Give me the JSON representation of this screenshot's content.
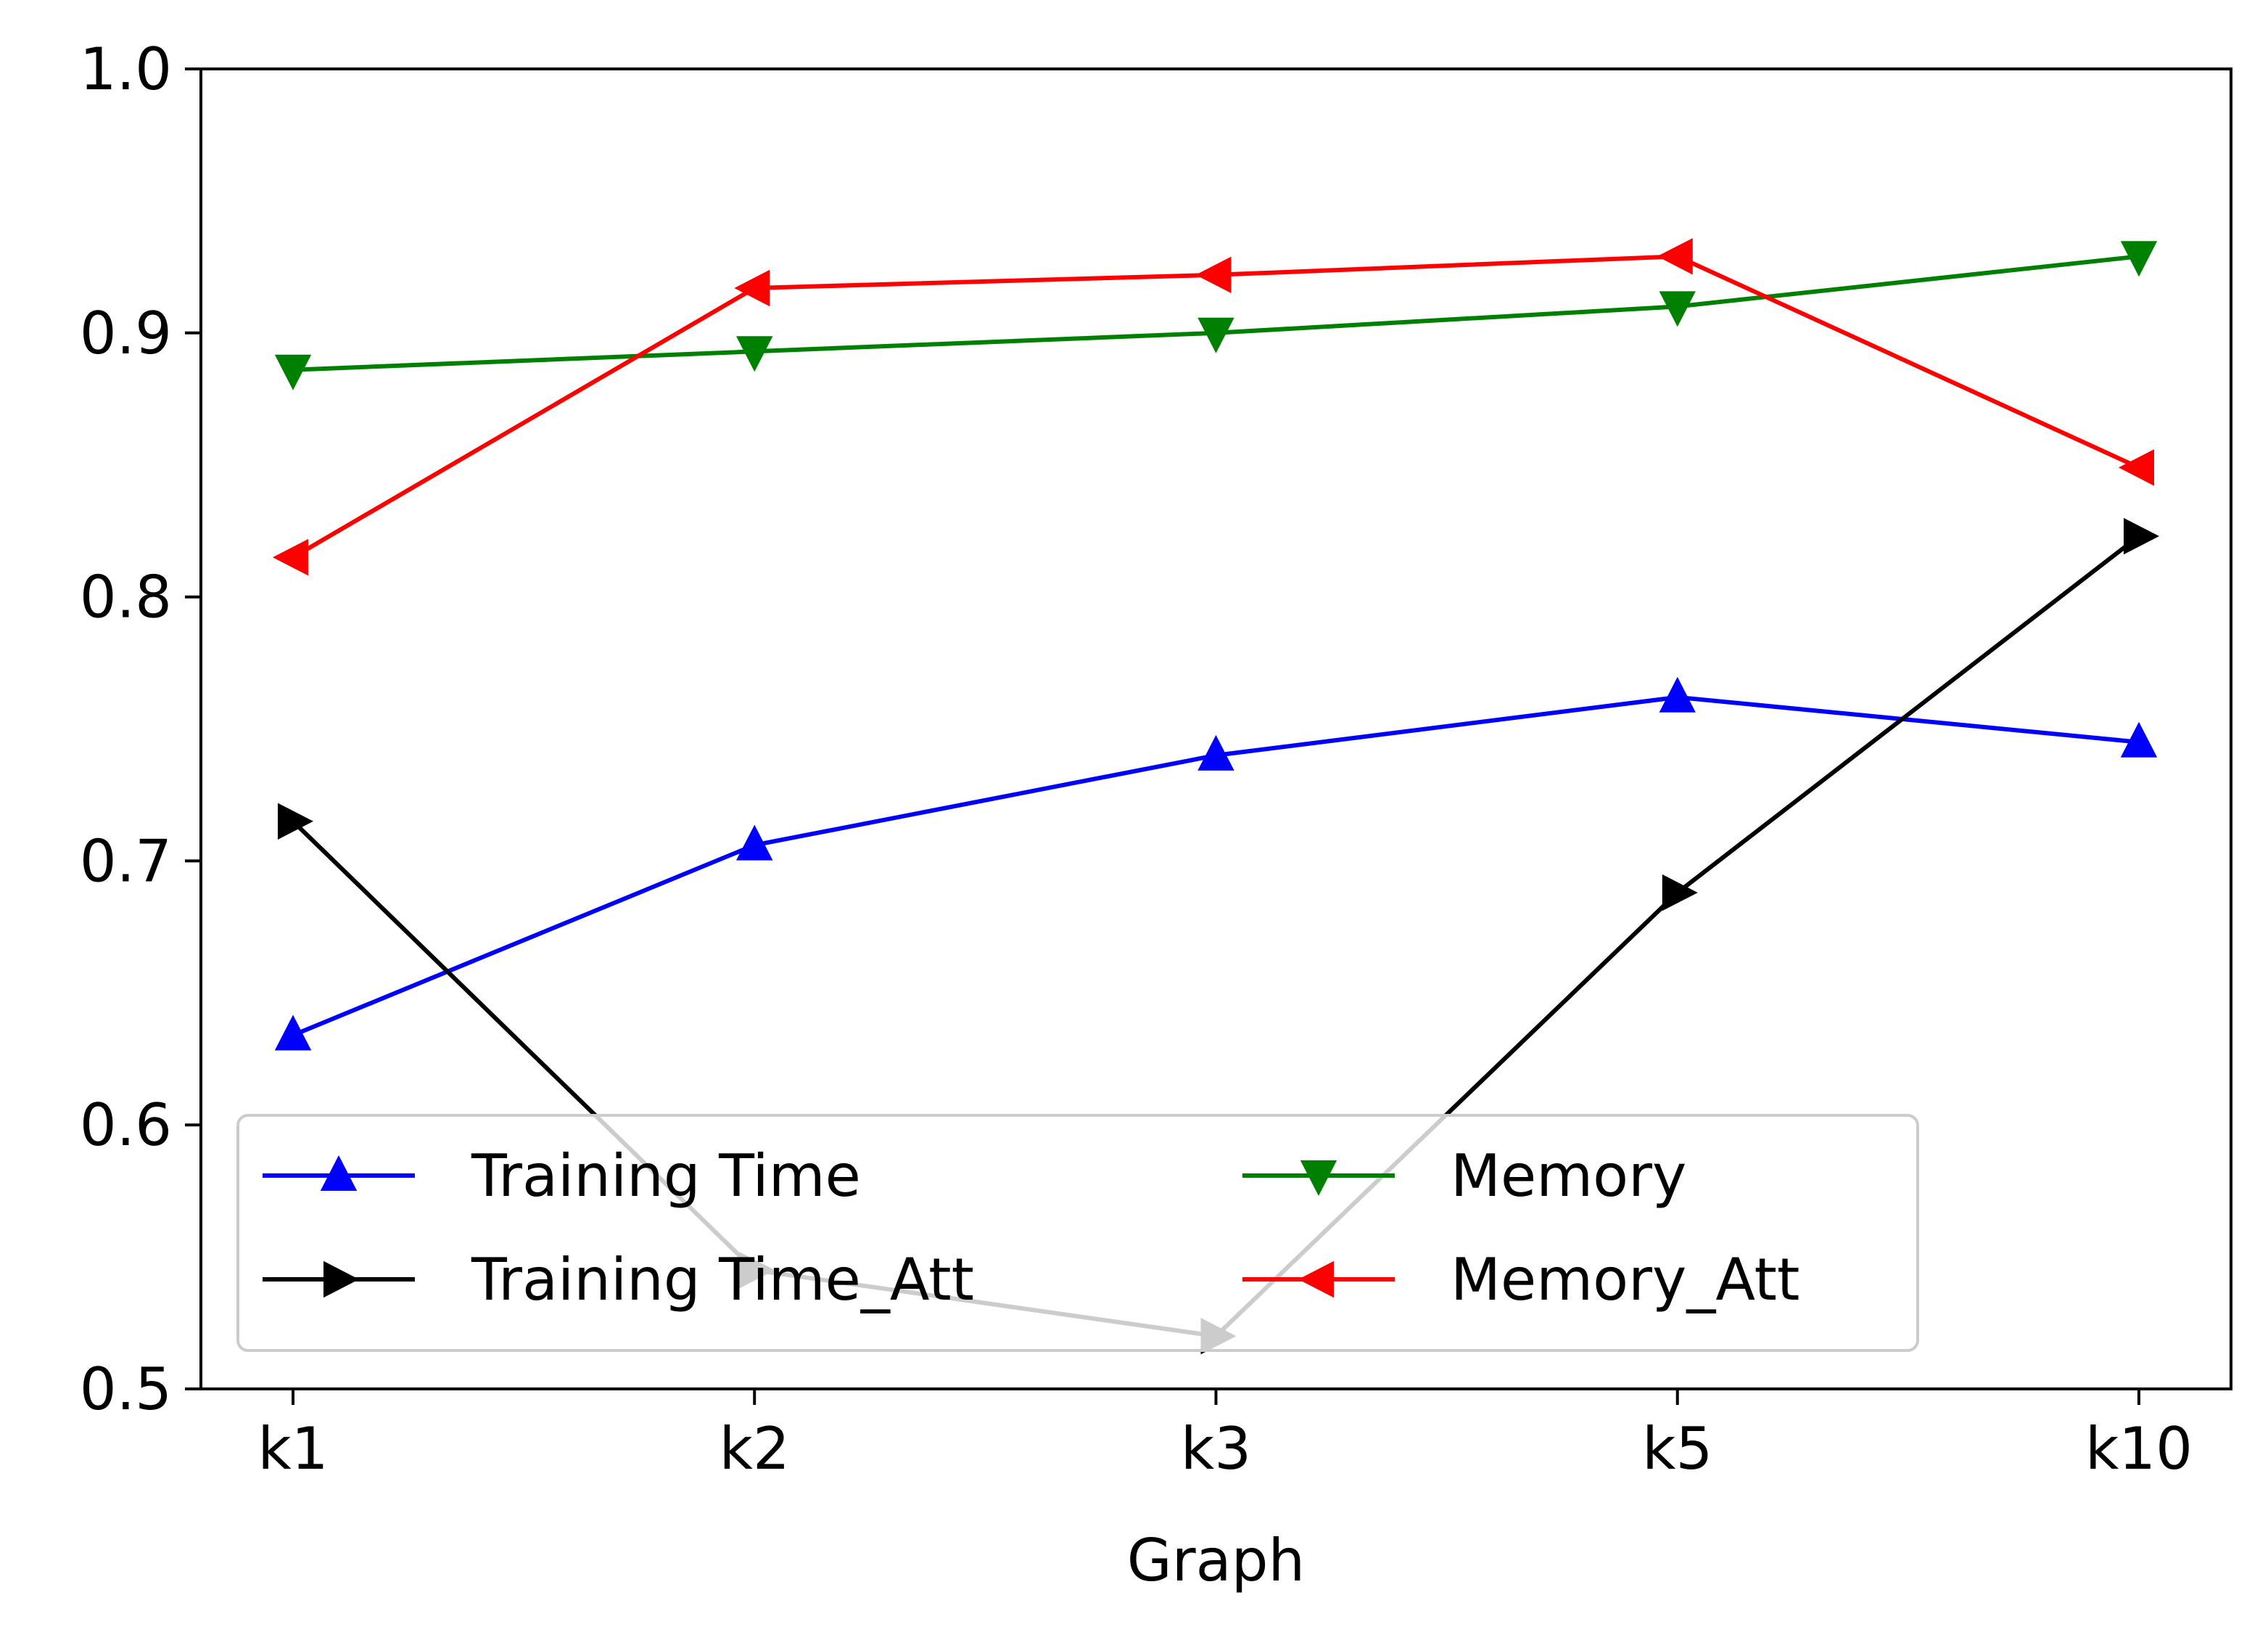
{
  "chart_data": {
    "type": "line",
    "title": "",
    "xlabel": "Graph",
    "ylabel": "",
    "categories": [
      "k1",
      "k2",
      "k3",
      "k5",
      "k10"
    ],
    "ylim": [
      0.5,
      1.0
    ],
    "yticks": [
      "0.5",
      "0.6",
      "0.7",
      "0.8",
      "0.9",
      "1.0"
    ],
    "grid": false,
    "legend_position": "lower-left",
    "legend_columns": 2,
    "series": [
      {
        "name": "Training Time",
        "color": "#0000ff",
        "marker": "triangle-up",
        "values": [
          0.634,
          0.706,
          0.74,
          0.762,
          0.745
        ]
      },
      {
        "name": "Training Time_Att",
        "color": "#000000",
        "marker": "triangle-right",
        "values": [
          0.715,
          0.545,
          0.52,
          0.688,
          0.823
        ]
      },
      {
        "name": "Memory",
        "color": "#008000",
        "marker": "triangle-down",
        "values": [
          0.886,
          0.893,
          0.9,
          0.91,
          0.929
        ]
      },
      {
        "name": "Memory_Att",
        "color": "#ff0000",
        "marker": "triangle-left",
        "values": [
          0.815,
          0.917,
          0.922,
          0.929,
          0.849
        ]
      }
    ]
  }
}
